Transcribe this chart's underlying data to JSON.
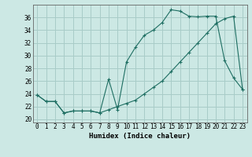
{
  "title": "",
  "xlabel": "Humidex (Indice chaleur)",
  "bg_color": "#cce8e4",
  "grid_color": "#a8ccc8",
  "line_color": "#1e6e62",
  "xlim": [
    -0.5,
    23.5
  ],
  "ylim": [
    19.5,
    38.0
  ],
  "xticks": [
    0,
    1,
    2,
    3,
    4,
    5,
    6,
    7,
    8,
    9,
    10,
    11,
    12,
    13,
    14,
    15,
    16,
    17,
    18,
    19,
    20,
    21,
    22,
    23
  ],
  "yticks": [
    20,
    22,
    24,
    26,
    28,
    30,
    32,
    34,
    36
  ],
  "line1_x": [
    0,
    1,
    2,
    3,
    4,
    5,
    6,
    7,
    8,
    9,
    10,
    11,
    12,
    13,
    14,
    15,
    16,
    17,
    18,
    19,
    20,
    21,
    22,
    23
  ],
  "line1_y": [
    23.8,
    22.8,
    22.8,
    21.0,
    21.3,
    21.3,
    21.3,
    21.0,
    26.3,
    21.5,
    29.0,
    31.3,
    33.2,
    34.0,
    35.2,
    37.2,
    37.0,
    36.2,
    36.1,
    36.2,
    36.2,
    29.2,
    26.5,
    24.7
  ],
  "line2_x": [
    0,
    1,
    2,
    3,
    4,
    5,
    6,
    7,
    8,
    9,
    10,
    11,
    12,
    13,
    14,
    15,
    16,
    17,
    18,
    19,
    20,
    21,
    22,
    23
  ],
  "line2_y": [
    23.8,
    22.8,
    22.8,
    21.0,
    21.3,
    21.3,
    21.3,
    21.0,
    21.5,
    22.0,
    22.5,
    23.0,
    24.0,
    25.0,
    26.0,
    27.5,
    29.0,
    30.5,
    32.0,
    33.5,
    35.0,
    35.8,
    36.2,
    24.7
  ],
  "tick_fontsize": 5.5,
  "xlabel_fontsize": 6.5
}
